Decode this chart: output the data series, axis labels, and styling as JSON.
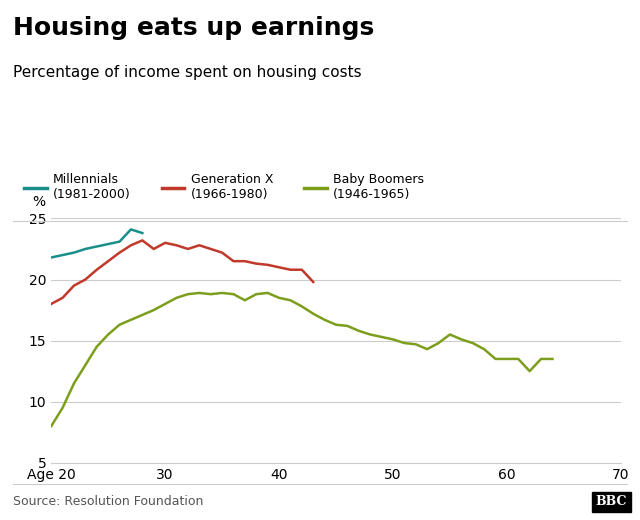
{
  "title": "Housing eats up earnings",
  "subtitle": "Percentage of income spent on housing costs",
  "source": "Source: Resolution Foundation",
  "ylabel": "%",
  "xlim": [
    20,
    70
  ],
  "ylim": [
    5,
    25
  ],
  "yticks": [
    5,
    10,
    15,
    20,
    25
  ],
  "xticks": [
    20,
    30,
    40,
    50,
    60,
    70
  ],
  "background_color": "#ffffff",
  "grid_color": "#cccccc",
  "millennials": {
    "color": "#1a8f8a",
    "x": [
      20,
      21,
      22,
      23,
      24,
      25,
      26,
      27,
      28
    ],
    "y": [
      21.8,
      22.0,
      22.2,
      22.5,
      22.7,
      22.9,
      23.1,
      24.1,
      23.8
    ]
  },
  "genx": {
    "color": "#c0392b",
    "x": [
      20,
      21,
      22,
      23,
      24,
      25,
      26,
      27,
      28,
      29,
      30,
      31,
      32,
      33,
      34,
      35,
      36,
      37,
      38,
      39,
      40,
      41,
      42,
      43
    ],
    "y": [
      18.0,
      18.5,
      19.5,
      20.0,
      20.8,
      21.5,
      22.2,
      22.8,
      23.2,
      22.5,
      23.0,
      22.8,
      22.5,
      22.8,
      22.5,
      22.2,
      21.5,
      21.5,
      21.3,
      21.2,
      21.0,
      20.8,
      20.8,
      19.8
    ]
  },
  "boomers": {
    "color": "#7d9e1d",
    "x": [
      20,
      21,
      22,
      23,
      24,
      25,
      26,
      27,
      28,
      29,
      30,
      31,
      32,
      33,
      34,
      35,
      36,
      37,
      38,
      39,
      40,
      41,
      42,
      43,
      44,
      45,
      46,
      47,
      48,
      49,
      50,
      51,
      52,
      53,
      54,
      55,
      56,
      57,
      58,
      59,
      60,
      61,
      62,
      63,
      64
    ],
    "y": [
      8.0,
      9.5,
      11.5,
      13.0,
      14.5,
      15.5,
      16.3,
      16.7,
      17.1,
      17.5,
      18.0,
      18.5,
      18.8,
      18.9,
      18.8,
      18.9,
      18.8,
      18.3,
      18.8,
      18.9,
      18.5,
      18.3,
      17.8,
      17.2,
      16.7,
      16.3,
      16.2,
      15.8,
      15.5,
      15.3,
      15.1,
      14.8,
      14.7,
      14.3,
      14.8,
      15.5,
      15.1,
      14.8,
      14.3,
      13.5,
      13.5,
      13.5,
      12.5,
      13.5,
      13.5
    ]
  },
  "legend_millennials": "Millennials\n(1981-2000)",
  "legend_genx": "Generation X\n(1966-1980)",
  "legend_boomers": "Baby Boomers\n(1946-1965)",
  "bbc_logo": "BBC",
  "title_fontsize": 18,
  "subtitle_fontsize": 11,
  "axis_fontsize": 10,
  "source_fontsize": 9,
  "legend_fontsize": 9,
  "line_width": 1.8
}
